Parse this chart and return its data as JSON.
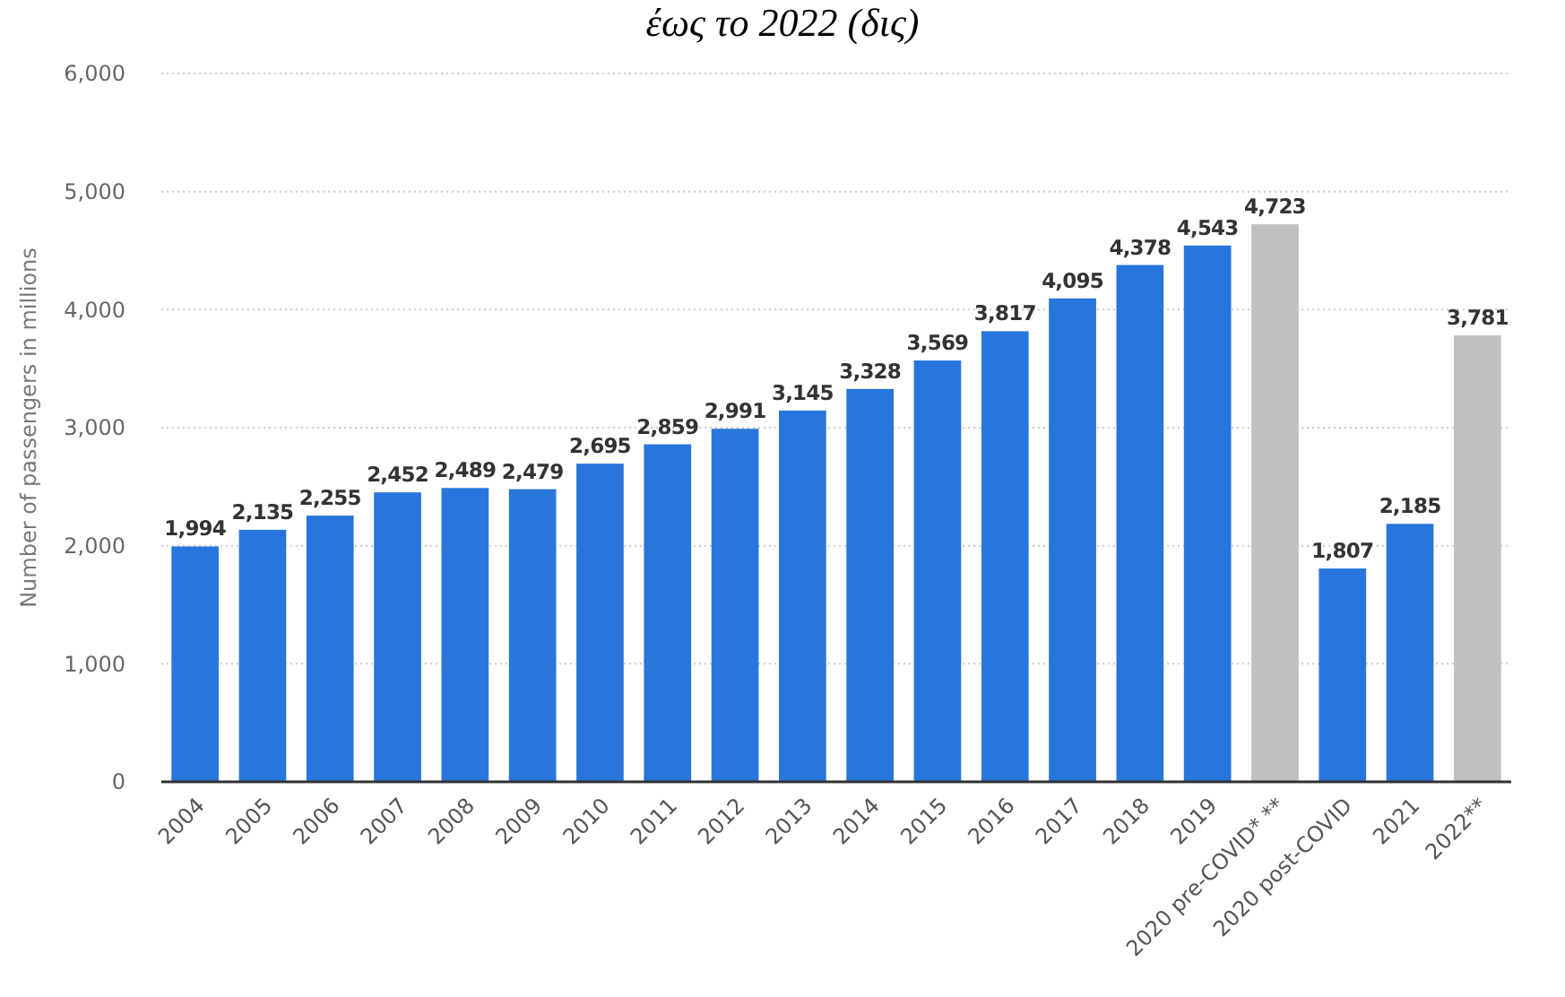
{
  "chart_data": {
    "type": "bar",
    "title": "έως το 2022 (δις)",
    "ylabel": "Number of passengers in millions",
    "categories": [
      "2004",
      "2005",
      "2006",
      "2007",
      "2008",
      "2009",
      "2010",
      "2011",
      "2012",
      "2013",
      "2014",
      "2015",
      "2016",
      "2017",
      "2018",
      "2019",
      "2020 pre-COVID* **",
      "2020 post-COVID",
      "2021",
      "2022**"
    ],
    "values": [
      1994,
      2135,
      2255,
      2452,
      2489,
      2479,
      2695,
      2859,
      2991,
      3145,
      3328,
      3569,
      3817,
      4095,
      4378,
      4543,
      4723,
      1807,
      2185,
      3781
    ],
    "colors": [
      "#2876dd",
      "#2876dd",
      "#2876dd",
      "#2876dd",
      "#2876dd",
      "#2876dd",
      "#2876dd",
      "#2876dd",
      "#2876dd",
      "#2876dd",
      "#2876dd",
      "#2876dd",
      "#2876dd",
      "#2876dd",
      "#2876dd",
      "#2876dd",
      "#c0c0c0",
      "#2876dd",
      "#2876dd",
      "#c0c0c0"
    ],
    "ylim": [
      0,
      6000
    ],
    "yticks": [
      {
        "value": 0,
        "label": "0"
      },
      {
        "value": 1000,
        "label": "1,000"
      },
      {
        "value": 2000,
        "label": "2,000"
      },
      {
        "value": 3000,
        "label": "3,000"
      },
      {
        "value": 4000,
        "label": "4,000"
      },
      {
        "value": 5000,
        "label": "5,000"
      },
      {
        "value": 6000,
        "label": "6,000"
      }
    ],
    "value_labels": [
      "1,994",
      "2,135",
      "2,255",
      "2,452",
      "2,489",
      "2,479",
      "2,695",
      "2,859",
      "2,991",
      "3,145",
      "3,328",
      "3,569",
      "3,817",
      "4,095",
      "4,378",
      "4,543",
      "4,723",
      "1,807",
      "2,185",
      "3,781"
    ],
    "grid": "y"
  }
}
